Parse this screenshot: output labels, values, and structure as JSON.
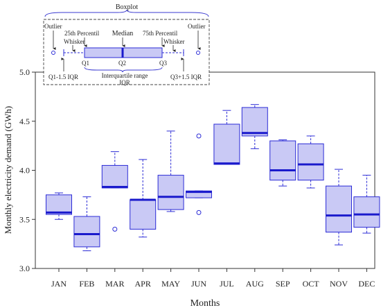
{
  "chart_data": {
    "type": "boxplot",
    "xlabel": "Months",
    "ylabel": "Monthly electricity demand (GWh)",
    "ylim": [
      3.0,
      5.0
    ],
    "yticks": [
      "3.0",
      "3.5",
      "4.0",
      "4.5",
      "5.0"
    ],
    "categories": [
      "JAN",
      "FEB",
      "MAR",
      "APR",
      "MAY",
      "JUN",
      "JUL",
      "AUG",
      "SEP",
      "OCT",
      "NOV",
      "DEC"
    ],
    "boxes": [
      {
        "whisker_low": 3.5,
        "q1": 3.55,
        "median": 3.57,
        "q3": 3.75,
        "whisker_high": 3.77,
        "outliers": []
      },
      {
        "whisker_low": 3.18,
        "q1": 3.22,
        "median": 3.35,
        "q3": 3.53,
        "whisker_high": 3.73,
        "outliers": []
      },
      {
        "whisker_low": 3.82,
        "q1": 3.82,
        "median": 3.83,
        "q3": 4.05,
        "whisker_high": 4.19,
        "outliers": [
          3.4
        ]
      },
      {
        "whisker_low": 3.32,
        "q1": 3.4,
        "median": 3.7,
        "q3": 3.7,
        "whisker_high": 4.11,
        "outliers": []
      },
      {
        "whisker_low": 3.58,
        "q1": 3.6,
        "median": 3.73,
        "q3": 3.95,
        "whisker_high": 4.4,
        "outliers": []
      },
      {
        "whisker_low": 3.72,
        "q1": 3.72,
        "median": 3.78,
        "q3": 3.79,
        "whisker_high": 3.79,
        "outliers": [
          4.35,
          3.57
        ]
      },
      {
        "whisker_low": 4.06,
        "q1": 4.06,
        "median": 4.07,
        "q3": 4.47,
        "whisker_high": 4.61,
        "outliers": []
      },
      {
        "whisker_low": 4.22,
        "q1": 4.35,
        "median": 4.38,
        "q3": 4.64,
        "whisker_high": 4.67,
        "outliers": []
      },
      {
        "whisker_low": 3.84,
        "q1": 3.9,
        "median": 4.0,
        "q3": 4.3,
        "whisker_high": 4.31,
        "outliers": []
      },
      {
        "whisker_low": 3.82,
        "q1": 3.9,
        "median": 4.06,
        "q3": 4.27,
        "whisker_high": 4.35,
        "outliers": []
      },
      {
        "whisker_low": 3.24,
        "q1": 3.37,
        "median": 3.54,
        "q3": 3.84,
        "whisker_high": 4.01,
        "outliers": []
      },
      {
        "whisker_low": 3.36,
        "q1": 3.42,
        "median": 3.55,
        "q3": 3.73,
        "whisker_high": 3.95,
        "outliers": []
      }
    ],
    "legend": {
      "title": "Boxplot",
      "outlier_left": "Outlier",
      "outlier_right": "Outlier",
      "p25": "25th Percentil",
      "p75": "75th Percentil",
      "median": "Median",
      "whisker_left": "Whisker",
      "whisker_right": "Whisker",
      "q1": "Q1",
      "q2": "Q2",
      "q3": "Q3",
      "lower_fence": "Q1-1.5 IQR",
      "upper_fence": "Q3+1.5 IQR",
      "iqr_line1": "Interquartile range",
      "iqr_line2": "IQR"
    },
    "colors": {
      "box_fill": "#c9c9f5",
      "stroke": "#2b2bd6",
      "median": "#1a1acc",
      "axis": "#333333"
    }
  }
}
